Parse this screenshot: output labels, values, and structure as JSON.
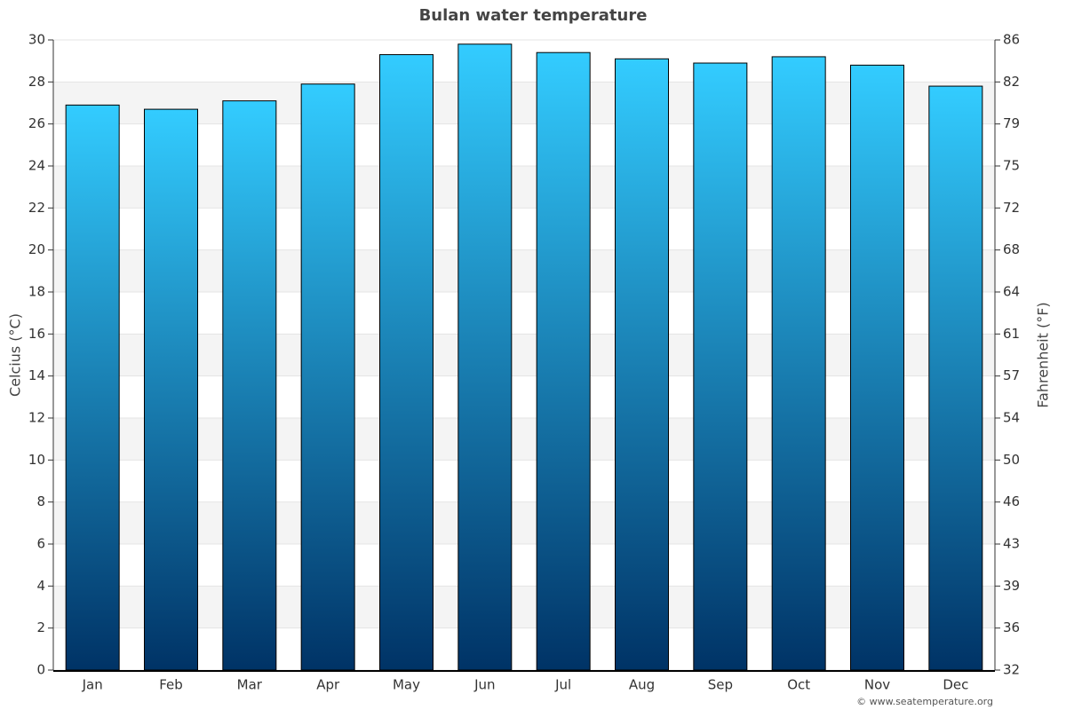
{
  "chart_data": {
    "type": "bar",
    "title": "Bulan water temperature",
    "y_label": "Celcius (°C)",
    "y2_label": "Fahrenheit (°F)",
    "credit": "© www.seatemperature.org",
    "categories": [
      "Jan",
      "Feb",
      "Mar",
      "Apr",
      "May",
      "Jun",
      "Jul",
      "Aug",
      "Sep",
      "Oct",
      "Nov",
      "Dec"
    ],
    "values": [
      26.9,
      26.7,
      27.1,
      27.9,
      29.3,
      29.8,
      29.4,
      29.1,
      28.9,
      29.2,
      28.8,
      27.8
    ],
    "gradient": [
      "#33ccff",
      "#003366"
    ],
    "ylim": [
      0,
      30
    ],
    "yticks": [
      0,
      2,
      4,
      6,
      8,
      10,
      12,
      14,
      16,
      18,
      20,
      22,
      24,
      26,
      28,
      30
    ],
    "y2lim": [
      32,
      86
    ],
    "y2ticks": [
      32,
      {
        "value": 35.6,
        "label": "36"
      },
      {
        "value": 39.2,
        "label": "39"
      },
      {
        "value": 42.8,
        "label": "43"
      },
      {
        "value": 46.4,
        "label": "46"
      },
      50,
      {
        "value": 53.6,
        "label": "54"
      },
      {
        "value": 57.2,
        "label": "57"
      },
      {
        "value": 60.8,
        "label": "61"
      },
      {
        "value": 64.4,
        "label": "64"
      },
      68,
      {
        "value": 71.6,
        "label": "72"
      },
      {
        "value": 75.2,
        "label": "75"
      },
      {
        "value": 78.8,
        "label": "79"
      },
      {
        "value": 82.4,
        "label": "82"
      },
      86
    ],
    "grid": true
  }
}
